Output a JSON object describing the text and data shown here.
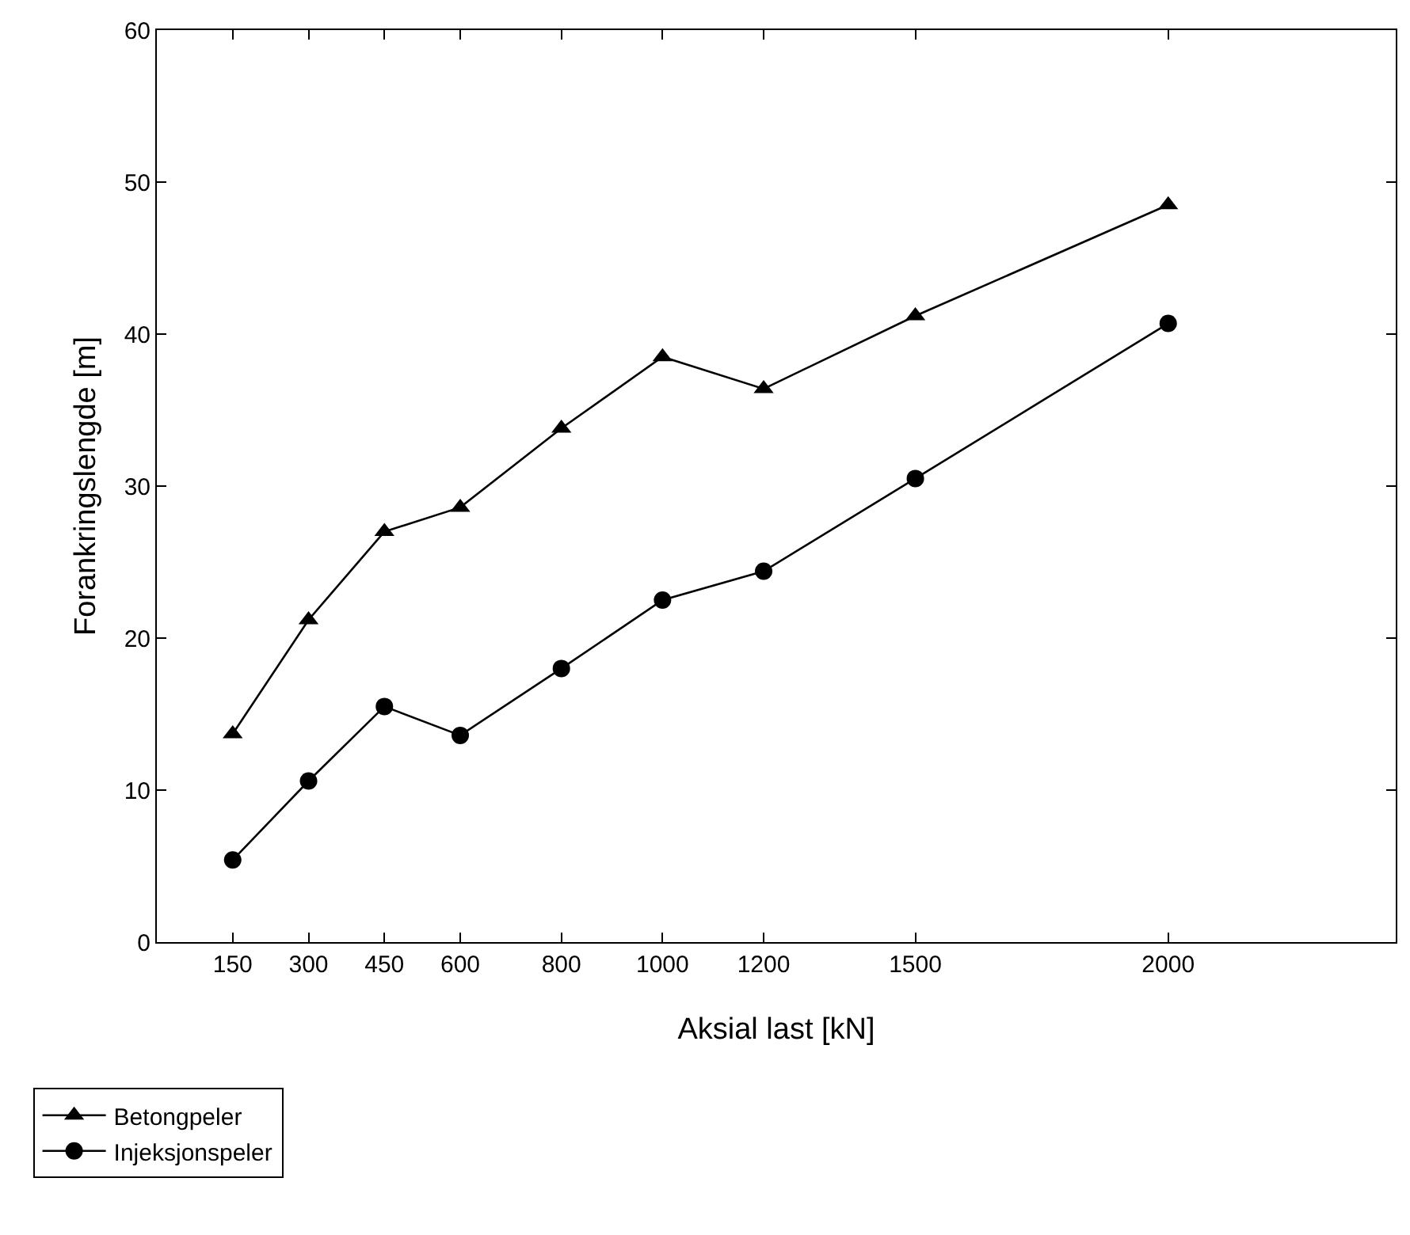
{
  "chart_data": {
    "type": "line",
    "xlabel": "Aksial last [kN]",
    "ylabel": "Forankringslengde [m]",
    "x": [
      150,
      300,
      450,
      600,
      800,
      1000,
      1200,
      1500,
      2000
    ],
    "series": [
      {
        "name": "Betongpeler",
        "color": "#000000",
        "marker": "triangle",
        "values": [
          13.7,
          21.2,
          27.0,
          28.6,
          33.8,
          38.5,
          36.4,
          41.2,
          48.5
        ]
      },
      {
        "name": "Injeksjonspeler",
        "color": "#000000",
        "marker": "circle",
        "values": [
          5.4,
          10.6,
          15.5,
          13.6,
          18.0,
          22.5,
          24.4,
          30.5,
          40.7
        ]
      }
    ],
    "xlim": [
      0,
      2450
    ],
    "xticks": [
      150,
      300,
      450,
      600,
      800,
      1000,
      1200,
      1500,
      2000
    ],
    "ylim": [
      0,
      60
    ],
    "yticks": [
      0,
      10,
      20,
      30,
      40,
      50,
      60
    ],
    "legend": "bottom left",
    "line_style": "solid"
  }
}
